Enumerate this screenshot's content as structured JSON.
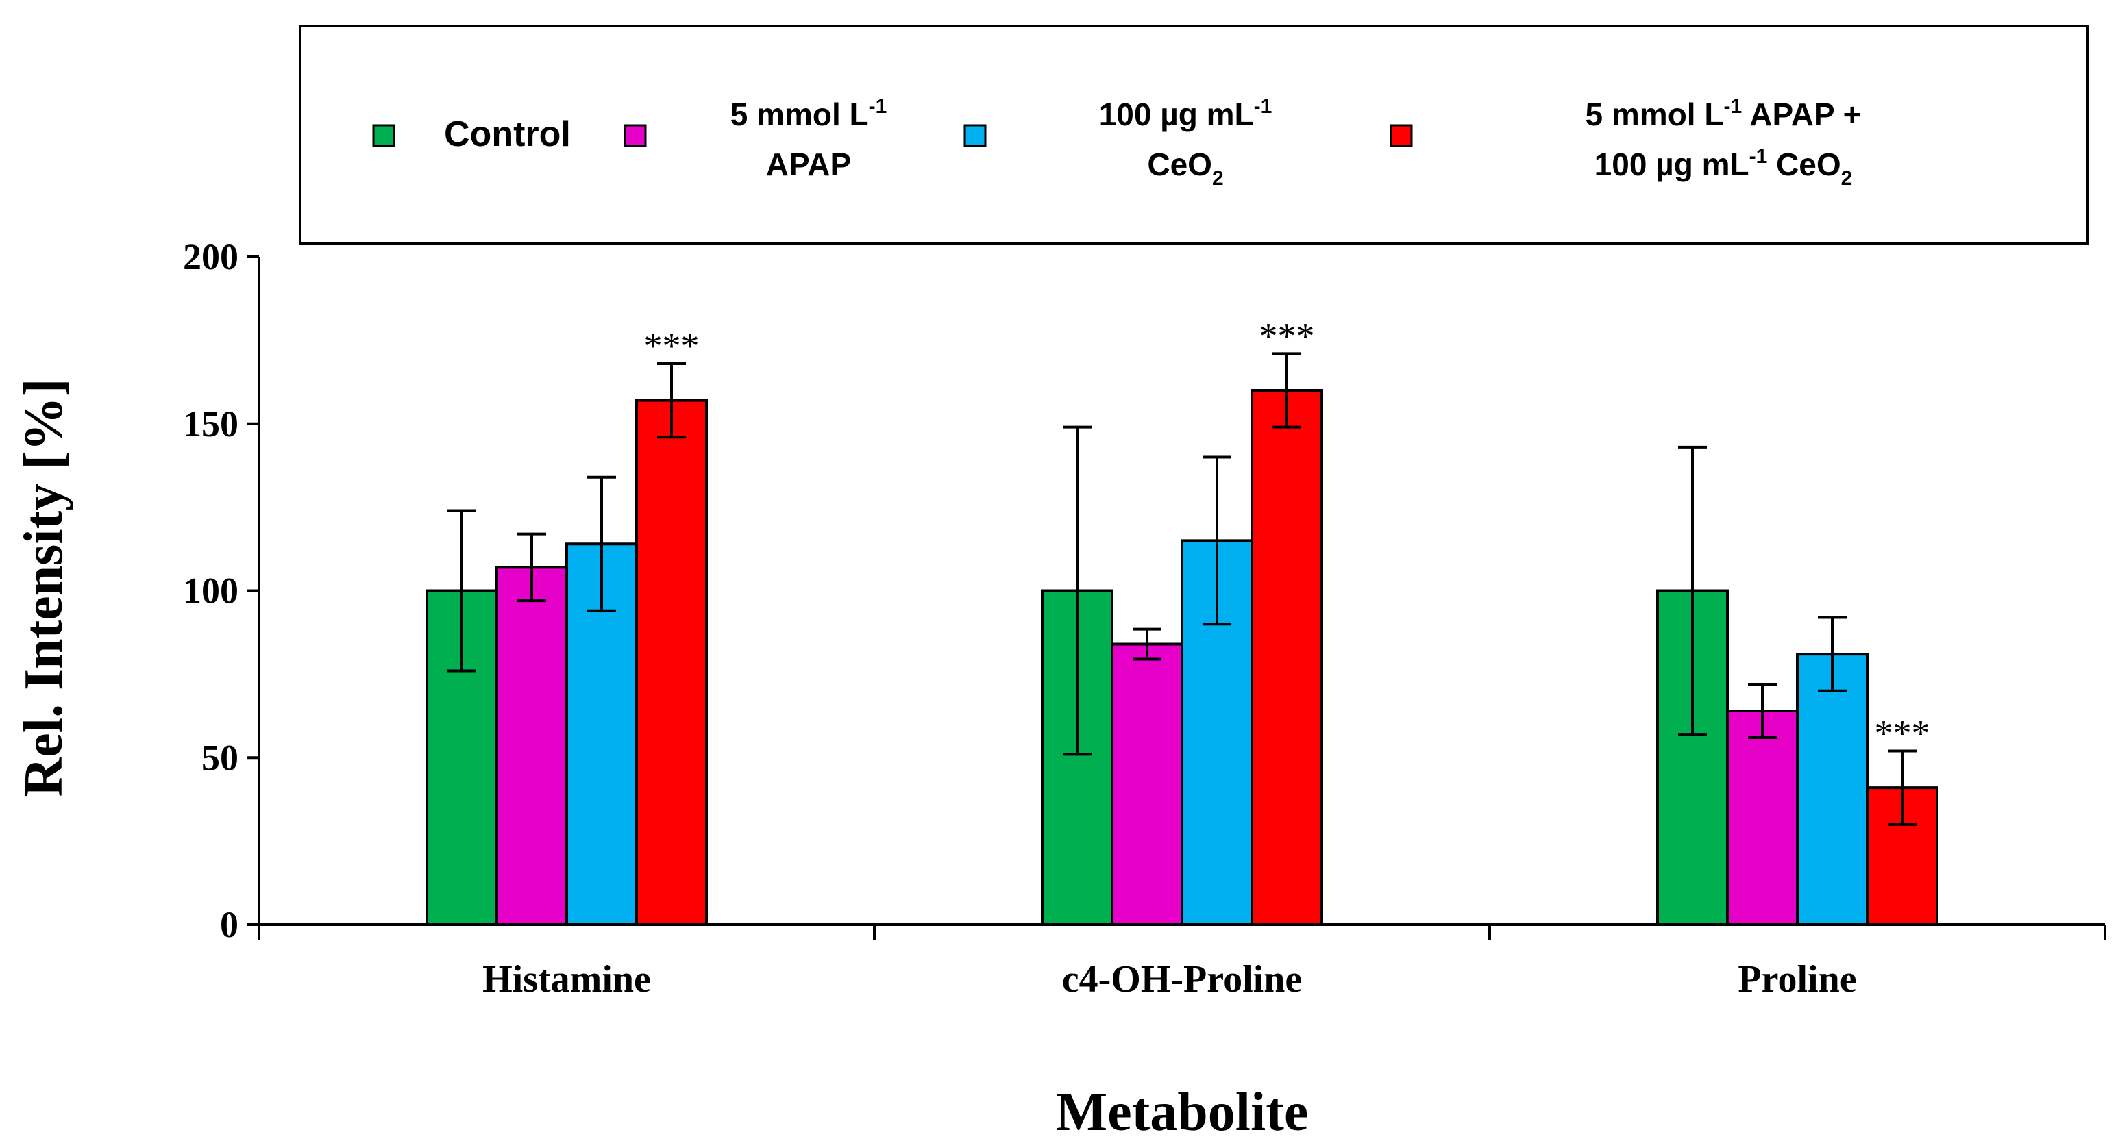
{
  "chart_data": {
    "type": "bar",
    "title": "",
    "xlabel": "Metabolite",
    "ylabel": "Rel. Intensity [%]",
    "ylim": [
      0,
      200
    ],
    "yticks": [
      "0",
      "50",
      "100",
      "150",
      "200"
    ],
    "categories": [
      "Histamine",
      "c4-OH-Proline",
      "Proline"
    ],
    "legend_position": "top",
    "series": [
      {
        "name": "Control",
        "legend": {
          "line1": "Control",
          "line2": ""
        },
        "color": "#00b050",
        "values": [
          100,
          100,
          100
        ],
        "errors": [
          24,
          49,
          43
        ],
        "annotations": [
          "",
          "",
          ""
        ]
      },
      {
        "name": "5 mmol L-1 APAP",
        "legend": {
          "line1": "5 mmol L",
          "line1_sup": "-1",
          "line2": "APAP"
        },
        "color": "#e600c8",
        "values": [
          107,
          84,
          64
        ],
        "errors": [
          10,
          4.5,
          8
        ],
        "annotations": [
          "",
          "",
          ""
        ]
      },
      {
        "name": "100 µg mL-1 CeO2",
        "legend": {
          "line1": "100 µg mL",
          "line1_sup": "-1",
          "line2": "CeO",
          "line2_sub": "2"
        },
        "color": "#00b0f0",
        "values": [
          114,
          115,
          81
        ],
        "errors": [
          20,
          25,
          11
        ],
        "annotations": [
          "",
          "",
          ""
        ]
      },
      {
        "name": "5 mmol L-1 APAP + 100 µg mL-1 CeO2",
        "legend": {
          "line1": "5 mmol L",
          "line1_sup": "-1",
          "line1_rest": " APAP +",
          "line2": "100 µg mL",
          "line2_sup": "-1",
          "line2_rest": " CeO",
          "line2_sub": "2"
        },
        "color": "#ff0000",
        "values": [
          157,
          160,
          41
        ],
        "errors": [
          11,
          11,
          11
        ],
        "annotations": [
          "***",
          "***",
          "***"
        ]
      }
    ]
  }
}
